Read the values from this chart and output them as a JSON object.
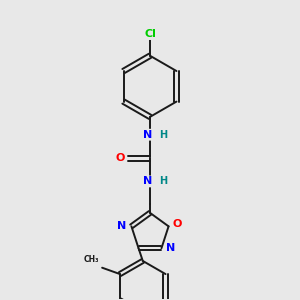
{
  "background_color": "#e8e8e8",
  "bond_color": "#1a1a1a",
  "atom_colors": {
    "N": "#0000ff",
    "O": "#ff0000",
    "Cl": "#00cc00",
    "H": "#008888",
    "C": "#1a1a1a"
  }
}
